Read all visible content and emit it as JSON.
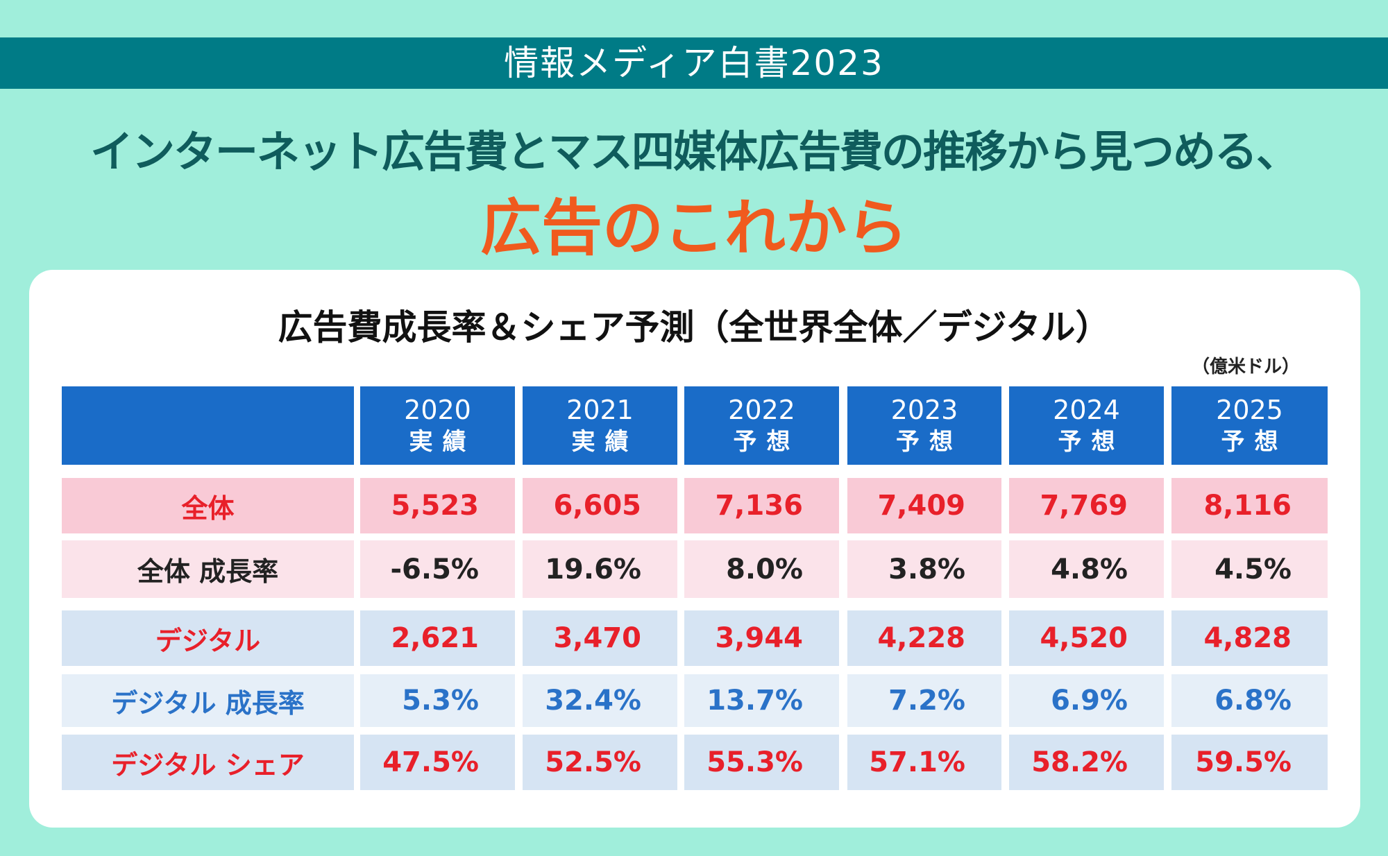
{
  "banner": "情報メディア白書2023",
  "headline": "インターネット広告費とマス四媒体広告費の推移から見つめる、",
  "subheadline": "広告のこれから",
  "table_title": "広告費成長率＆シェア予測（全世界全体／デジタル）",
  "unit": "（億米ドル）",
  "colors": {
    "background": "#a0eedb",
    "band": "#007b86",
    "accent": "#f05a1e",
    "header": "#1a6cc8",
    "red": "#e8202a",
    "blue": "#2a72c8"
  },
  "columns": [
    {
      "year": "2020",
      "type": "実績"
    },
    {
      "year": "2021",
      "type": "実績"
    },
    {
      "year": "2022",
      "type": "予想"
    },
    {
      "year": "2023",
      "type": "予想"
    },
    {
      "year": "2024",
      "type": "予想"
    },
    {
      "year": "2025",
      "type": "予想"
    }
  ],
  "rows": [
    {
      "label": "全体",
      "values": [
        "5,523",
        "6,605",
        "7,136",
        "7,409",
        "7,769",
        "8,116"
      ]
    },
    {
      "label": "全体 成長率",
      "values": [
        "-6.5%",
        "19.6%",
        "8.0%",
        "3.8%",
        "4.8%",
        "4.5%"
      ]
    },
    {
      "label": "デジタル",
      "values": [
        "2,621",
        "3,470",
        "3,944",
        "4,228",
        "4,520",
        "4,828"
      ]
    },
    {
      "label": "デジタル 成長率",
      "values": [
        "5.3%",
        "32.4%",
        "13.7%",
        "7.2%",
        "6.9%",
        "6.8%"
      ]
    },
    {
      "label": "デジタル シェア",
      "values": [
        "47.5%",
        "52.5%",
        "55.3%",
        "57.1%",
        "58.2%",
        "59.5%"
      ]
    }
  ]
}
